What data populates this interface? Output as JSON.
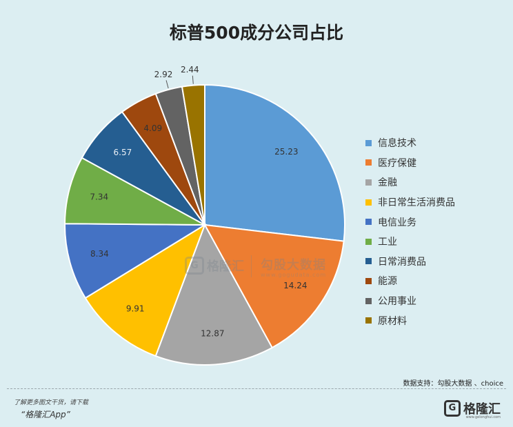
{
  "chart_data": {
    "type": "pie",
    "title": "标普500成分公司占比",
    "legend_position": "right",
    "labels": [
      "信息技术",
      "医疗保健",
      "金融",
      "非日常生活消费品",
      "电信业务",
      "工业",
      "日常消费品",
      "能源",
      "公用事业",
      "原材料"
    ],
    "values": [
      25.23,
      14.24,
      12.87,
      9.91,
      8.34,
      7.34,
      6.57,
      4.09,
      2.92,
      2.44
    ],
    "value_labels": [
      "25.23",
      "14.24",
      "12.87",
      "9.91",
      "8.34",
      "7.34",
      "6.57",
      "4.09",
      "2.92",
      "2.44"
    ],
    "colors": [
      "#5b9bd5",
      "#ed7d31",
      "#a5a5a5",
      "#ffc000",
      "#4472c4",
      "#70ad47",
      "#255e91",
      "#9e480e",
      "#636363",
      "#997300"
    ]
  },
  "watermark": {
    "logo_glyph": "G",
    "brand": "格隆汇",
    "name": "勾股大数据",
    "url": "www.gogudata.com"
  },
  "source": "数据支持：勾股大数据 、choice",
  "footer": {
    "note": "了解更多图文干货，请下载",
    "app": "“格隆汇App”"
  },
  "logo": {
    "glyph": "G",
    "text": "格隆汇",
    "url": "www.gelonghui.com"
  }
}
